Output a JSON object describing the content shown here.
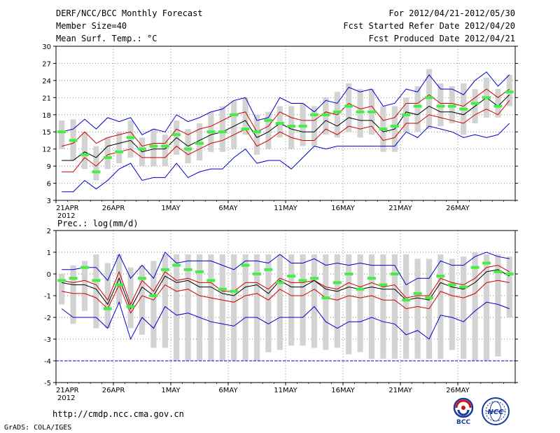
{
  "header": {
    "title": "DERF/NCC/BCC Monthly Forecast",
    "member_size": "Member Size=40",
    "variable": "Mean Surf. Temp.: °C",
    "period": "For 2012/04/21-2012/05/30",
    "start_date": "Fcst Started Refer Date 2012/04/20",
    "produced_date": "Fcst Produced Date 2012/04/21"
  },
  "footer": {
    "url": "http://cmdp.ncc.cma.gov.cn",
    "credit": "GrADS: COLA/IGES",
    "logo_bcc": "BCC",
    "logo_ncc": "NCC"
  },
  "colors": {
    "ensemble_bar": "#d3d3d3",
    "median": "#000000",
    "envelope_outer": "#0000cc",
    "envelope_inner": "#cc0000",
    "clim_marker": "#44ee44",
    "grid": "#555555"
  },
  "chart_data": [
    {
      "type": "line",
      "title": "Mean Surf. Temp.: °C",
      "x_tick_labels": [
        "21APR",
        "26APR",
        "1MAY",
        "6MAY",
        "11MAY",
        "16MAY",
        "21MAY",
        "26MAY"
      ],
      "x_tick_positions": [
        0,
        5,
        10,
        15,
        20,
        25,
        30,
        35
      ],
      "year_label": "2012",
      "ylim": [
        3,
        30
      ],
      "yticks": [
        3,
        6,
        9,
        12,
        15,
        18,
        21,
        24,
        27,
        30
      ],
      "days": 40,
      "series": [
        {
          "name": "ensemble max",
          "values": [
            15.0,
            15.5,
            17.2,
            15.5,
            17.5,
            16.8,
            17.5,
            14.5,
            15.5,
            15.0,
            18.0,
            16.8,
            17.5,
            18.5,
            19.0,
            20.5,
            21.0,
            17.0,
            17.5,
            21.0,
            20.0,
            20.0,
            18.5,
            20.5,
            20.0,
            22.8,
            22.0,
            22.5,
            19.5,
            20.0,
            22.5,
            22.0,
            25.0,
            22.5,
            22.5,
            21.5,
            24.0,
            25.5,
            23.0,
            25.0
          ]
        },
        {
          "name": "ensemble upper",
          "values": [
            12.5,
            13.0,
            15.0,
            13.0,
            14.0,
            14.5,
            15.0,
            12.5,
            13.0,
            13.0,
            15.5,
            14.5,
            15.5,
            16.0,
            17.0,
            18.0,
            18.5,
            15.0,
            16.0,
            18.5,
            17.5,
            17.0,
            17.0,
            18.5,
            18.0,
            20.0,
            19.0,
            19.5,
            17.0,
            17.5,
            20.0,
            20.0,
            21.5,
            20.0,
            20.0,
            19.5,
            21.0,
            22.5,
            21.0,
            22.5
          ]
        },
        {
          "name": "ensemble median",
          "values": [
            10.0,
            10.0,
            11.5,
            10.5,
            12.5,
            13.0,
            13.5,
            11.5,
            12.0,
            12.0,
            14.0,
            12.5,
            13.5,
            14.5,
            15.0,
            16.0,
            17.0,
            14.0,
            15.0,
            16.5,
            15.5,
            15.0,
            15.0,
            17.0,
            16.0,
            17.5,
            17.0,
            17.0,
            15.0,
            15.5,
            18.5,
            18.0,
            19.5,
            18.5,
            18.5,
            18.0,
            19.5,
            21.0,
            19.5,
            21.5
          ]
        },
        {
          "name": "ensemble lower",
          "values": [
            8.0,
            8.0,
            10.5,
            9.0,
            11.0,
            11.5,
            12.0,
            10.5,
            10.5,
            10.5,
            12.5,
            11.0,
            12.0,
            13.0,
            13.5,
            14.5,
            15.5,
            12.5,
            13.5,
            15.0,
            14.0,
            13.5,
            13.5,
            15.5,
            14.5,
            16.0,
            15.5,
            16.0,
            13.5,
            14.0,
            16.5,
            16.5,
            18.0,
            17.5,
            17.0,
            16.5,
            18.0,
            19.0,
            18.0,
            20.5
          ]
        },
        {
          "name": "ensemble min",
          "values": [
            4.5,
            4.5,
            6.5,
            5.0,
            6.5,
            8.5,
            9.5,
            6.5,
            7.0,
            7.0,
            9.5,
            7.0,
            8.0,
            8.5,
            8.5,
            10.5,
            12.0,
            9.5,
            10.0,
            10.0,
            8.5,
            10.5,
            12.5,
            12.0,
            12.5,
            12.5,
            12.5,
            12.5,
            12.5,
            12.5,
            15.0,
            14.0,
            16.0,
            15.5,
            15.0,
            14.0,
            14.5,
            14.0,
            14.5,
            16.5
          ]
        },
        {
          "name": "climatology",
          "values": [
            15.0,
            13.5,
            11.0,
            8.0,
            10.5,
            11.5,
            14.0,
            12.0,
            12.5,
            12.5,
            14.5,
            12.0,
            13.0,
            15.0,
            15.0,
            18.0,
            15.5,
            15.0,
            17.0,
            16.5,
            16.0,
            16.0,
            18.0,
            18.0,
            18.5,
            19.5,
            18.5,
            18.5,
            15.5,
            16.0,
            18.0,
            19.5,
            21.0,
            19.5,
            19.5,
            19.0,
            20.0,
            21.0,
            19.5,
            22.0
          ]
        }
      ],
      "spread_bars": {
        "high": [
          17.0,
          17.2,
          15.0,
          12.5,
          14.0,
          15.0,
          17.0,
          14.0,
          15.5,
          14.5,
          17.0,
          15.5,
          16.5,
          18.5,
          19.5,
          20.5,
          21.0,
          18.0,
          18.5,
          19.5,
          19.5,
          20.0,
          19.5,
          21.0,
          22.0,
          23.5,
          22.5,
          22.5,
          19.5,
          19.5,
          21.0,
          23.0,
          26.0,
          23.5,
          23.0,
          23.5,
          22.5,
          24.5,
          22.5,
          25.0
        ],
        "low": [
          12.0,
          10.0,
          8.5,
          6.5,
          8.5,
          9.5,
          10.5,
          9.0,
          9.0,
          9.0,
          11.0,
          9.5,
          10.0,
          11.5,
          11.5,
          12.0,
          14.5,
          11.0,
          12.0,
          14.0,
          12.0,
          12.5,
          12.5,
          14.5,
          14.0,
          15.0,
          14.0,
          14.5,
          11.5,
          11.5,
          15.0,
          15.0,
          15.5,
          16.0,
          16.5,
          14.5,
          16.5,
          17.5,
          17.5,
          19.5
        ]
      }
    },
    {
      "type": "line",
      "title": "Prec.: log(mm/d)",
      "x_tick_labels": [
        "21APR",
        "26APR",
        "1MAY",
        "6MAY",
        "11MAY",
        "16MAY",
        "21MAY",
        "26MAY"
      ],
      "x_tick_positions": [
        0,
        5,
        10,
        15,
        20,
        25,
        30,
        35
      ],
      "year_label": "2012",
      "ylim": [
        -5,
        2
      ],
      "yticks": [
        -5,
        -4,
        -3,
        -2,
        -1,
        0,
        1,
        2
      ],
      "days": 40,
      "series": [
        {
          "name": "ensemble max",
          "values": [
            0.2,
            0.2,
            0.3,
            0.3,
            -0.3,
            0.9,
            -0.2,
            0.4,
            -0.2,
            1.0,
            0.5,
            0.6,
            0.6,
            0.6,
            0.4,
            0.2,
            0.6,
            0.6,
            0.5,
            0.9,
            0.5,
            0.5,
            0.7,
            0.4,
            0.5,
            0.4,
            0.5,
            0.4,
            0.4,
            0.4,
            -0.5,
            -0.2,
            -0.2,
            0.6,
            0.4,
            0.4,
            0.8,
            1.0,
            0.8,
            0.7
          ]
        },
        {
          "name": "ensemble upper",
          "values": [
            -0.3,
            -0.4,
            -0.3,
            -0.5,
            -1.2,
            0.1,
            -1.4,
            -0.3,
            -0.8,
            0.1,
            -0.3,
            -0.2,
            -0.4,
            -0.4,
            -0.8,
            -0.8,
            -0.4,
            -0.4,
            -0.7,
            -0.2,
            -0.4,
            -0.4,
            -0.3,
            -0.6,
            -0.7,
            -0.4,
            -0.6,
            -0.4,
            -0.6,
            -0.5,
            -1.1,
            -1.0,
            -1.0,
            -0.2,
            -0.4,
            -0.5,
            -0.2,
            0.3,
            0.4,
            0.1
          ]
        },
        {
          "name": "ensemble median",
          "values": [
            -0.4,
            -0.5,
            -0.5,
            -0.7,
            -1.4,
            -0.2,
            -1.6,
            -0.6,
            -1.0,
            -0.1,
            -0.4,
            -0.3,
            -0.6,
            -0.6,
            -0.9,
            -1.0,
            -0.6,
            -0.5,
            -0.9,
            -0.3,
            -0.6,
            -0.6,
            -0.3,
            -0.7,
            -0.8,
            -0.6,
            -0.7,
            -0.6,
            -0.7,
            -0.7,
            -1.2,
            -1.1,
            -1.2,
            -0.4,
            -0.6,
            -0.7,
            -0.4,
            0.1,
            0.2,
            -0.1
          ]
        },
        {
          "name": "ensemble lower",
          "values": [
            -0.8,
            -0.9,
            -0.9,
            -1.1,
            -1.6,
            -0.5,
            -1.8,
            -1.0,
            -1.2,
            -0.5,
            -0.8,
            -0.7,
            -1.0,
            -1.1,
            -1.2,
            -1.3,
            -1.0,
            -0.9,
            -1.2,
            -0.7,
            -1.0,
            -1.0,
            -0.7,
            -1.1,
            -1.2,
            -1.0,
            -1.1,
            -1.0,
            -1.2,
            -1.2,
            -1.6,
            -1.5,
            -1.6,
            -0.8,
            -1.0,
            -1.1,
            -0.9,
            -0.4,
            -0.3,
            -0.4
          ]
        },
        {
          "name": "ensemble min",
          "values": [
            -1.6,
            -2.0,
            -2.0,
            -2.0,
            -2.5,
            -1.3,
            -3.0,
            -2.0,
            -2.5,
            -1.5,
            -1.9,
            -1.8,
            -2.0,
            -2.2,
            -2.3,
            -2.4,
            -2.0,
            -2.0,
            -2.3,
            -2.0,
            -2.0,
            -2.0,
            -1.5,
            -2.2,
            -2.5,
            -2.2,
            -2.2,
            -2.0,
            -2.2,
            -2.3,
            -2.8,
            -2.6,
            -3.0,
            -1.9,
            -2.0,
            -2.2,
            -1.7,
            -1.3,
            -1.4,
            -1.6
          ]
        },
        {
          "name": "climatology",
          "values": [
            -0.3,
            -0.2,
            0.3,
            -0.3,
            -1.6,
            -0.5,
            -1.5,
            -0.2,
            -1.0,
            0.2,
            0.4,
            0.2,
            0.1,
            -0.3,
            -0.7,
            -0.8,
            0.4,
            0.0,
            0.2,
            -0.4,
            -0.1,
            -0.3,
            -0.2,
            -1.1,
            -0.4,
            0.0,
            -0.7,
            -0.2,
            -0.5,
            0.0,
            -1.2,
            -0.9,
            -1.1,
            -0.1,
            -0.5,
            -0.6,
            0.3,
            0.5,
            0.1,
            0.0
          ]
        }
      ],
      "spread_bars": {
        "high": [
          0.0,
          0.4,
          0.6,
          0.9,
          0.5,
          0.9,
          0.3,
          0.4,
          0.6,
          0.9,
          0.9,
          0.9,
          0.9,
          0.9,
          0.9,
          0.9,
          0.9,
          0.9,
          0.9,
          0.9,
          0.9,
          0.9,
          0.9,
          0.9,
          0.9,
          0.9,
          0.9,
          0.9,
          0.9,
          0.9,
          0.9,
          0.7,
          0.7,
          0.9,
          0.7,
          0.8,
          1.0,
          0.9,
          0.9,
          0.8
        ],
        "low": [
          -1.4,
          -2.3,
          -1.7,
          -2.5,
          -2.5,
          -1.4,
          -2.5,
          -2.8,
          -3.4,
          -3.4,
          -4.0,
          -4.0,
          -4.0,
          -4.0,
          -4.0,
          -4.0,
          -4.0,
          -4.0,
          -3.6,
          -3.5,
          -3.3,
          -3.3,
          -3.4,
          -3.5,
          -3.4,
          -3.7,
          -3.6,
          -3.9,
          -3.9,
          -3.9,
          -3.9,
          -3.9,
          -3.9,
          -3.9,
          -3.5,
          -3.9,
          -4.0,
          -4.0,
          -3.8,
          -2.0
        ]
      },
      "dashed_line": {
        "y": -4,
        "label": ""
      }
    }
  ]
}
